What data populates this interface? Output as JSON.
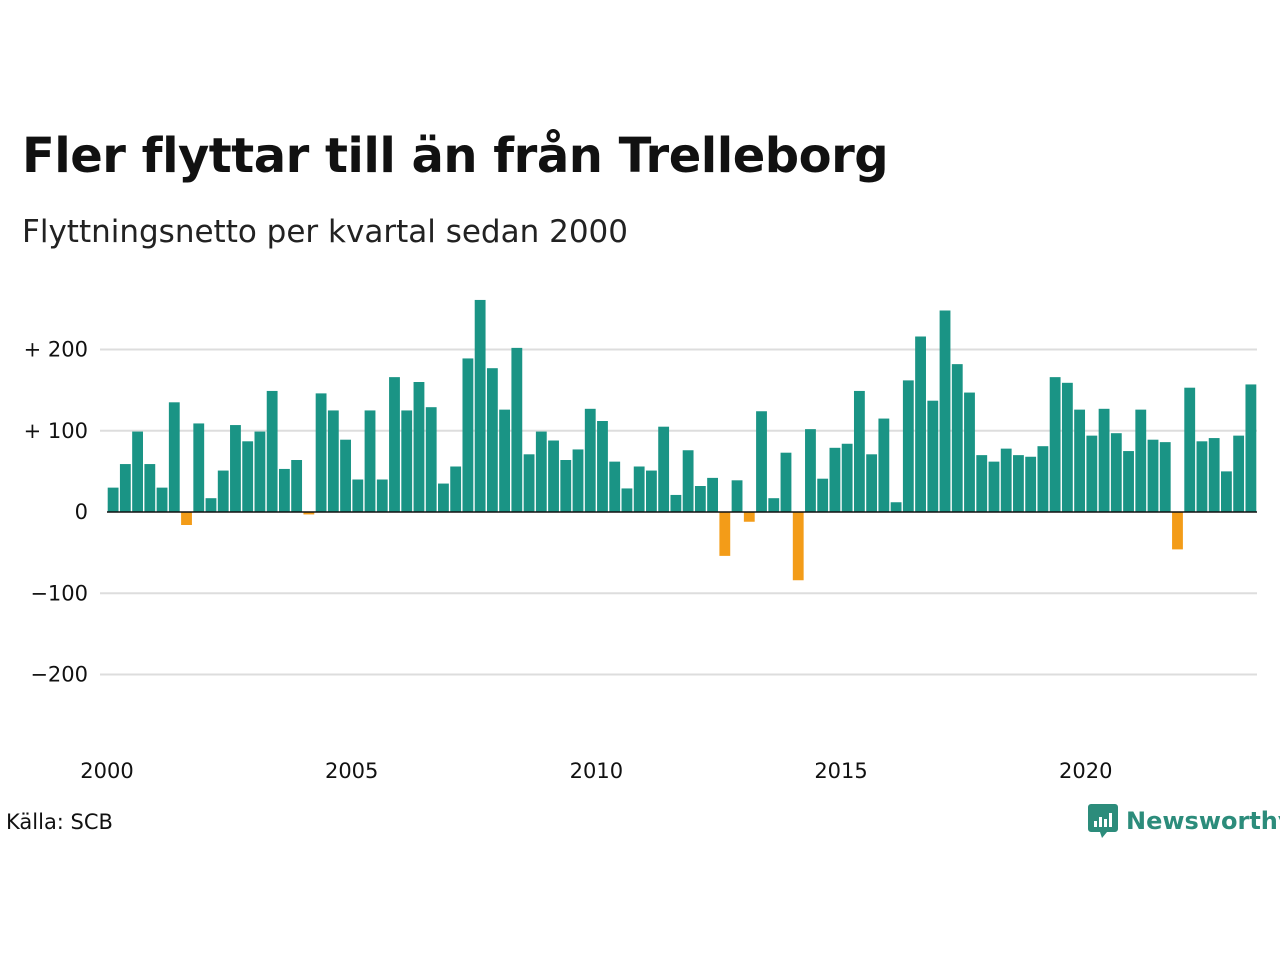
{
  "title": "Fler flyttar till än från Trelleborg",
  "subtitle": "Flyttningsnetto per kvartal sedan 2000",
  "source": "Källa: SCB",
  "brand": {
    "name": "Newsworthy",
    "icon": "chart-bubble-icon"
  },
  "colors": {
    "positive": "#1a9485",
    "negative": "#f39c18",
    "grid": "#dddddd",
    "brand": "#2c8c7b"
  },
  "chart_data": {
    "type": "bar",
    "x_start_year": 2000,
    "quarters_per_year": 4,
    "ylim": [
      -250,
      270
    ],
    "yticks": [
      {
        "value": 200,
        "label": "+ 200"
      },
      {
        "value": 100,
        "label": "+ 100"
      },
      {
        "value": 0,
        "label": "0"
      },
      {
        "value": -100,
        "label": "−100"
      },
      {
        "value": -200,
        "label": "−200"
      }
    ],
    "xticks": [
      {
        "value": 2000,
        "label": "2000"
      },
      {
        "value": 2005,
        "label": "2005"
      },
      {
        "value": 2010,
        "label": "2010"
      },
      {
        "value": 2015,
        "label": "2015"
      },
      {
        "value": 2020,
        "label": "2020"
      }
    ],
    "grid": true,
    "values": [
      30,
      59,
      99,
      59,
      30,
      135,
      -16,
      109,
      17,
      51,
      107,
      87,
      99,
      149,
      53,
      64,
      -3,
      146,
      125,
      89,
      40,
      125,
      40,
      166,
      125,
      160,
      129,
      35,
      56,
      189,
      261,
      177,
      126,
      202,
      71,
      99,
      88,
      64,
      77,
      127,
      112,
      62,
      29,
      56,
      51,
      105,
      21,
      76,
      32,
      42,
      -54,
      39,
      -12,
      124,
      17,
      73,
      -84,
      102,
      41,
      79,
      84,
      149,
      71,
      115,
      12,
      162,
      216,
      137,
      248,
      182,
      147,
      70,
      62,
      78,
      70,
      68,
      81,
      166,
      159,
      126,
      94,
      127,
      97,
      75,
      126,
      89,
      86,
      -46,
      153,
      87,
      91,
      50,
      94,
      157
    ]
  }
}
